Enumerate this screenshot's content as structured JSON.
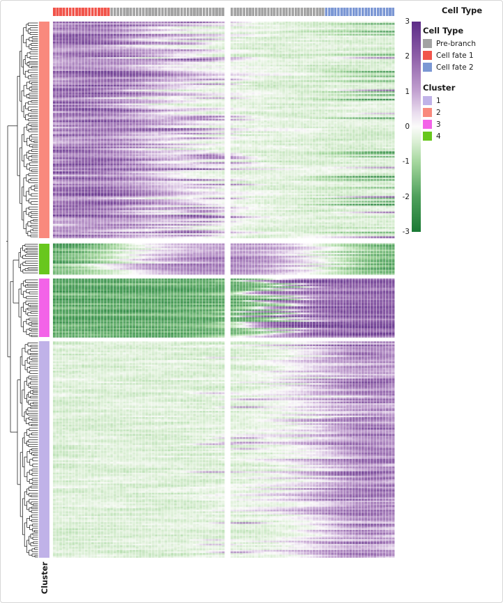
{
  "window": {
    "bg": "#ffffff",
    "border": "#d6d6d6"
  },
  "top_annotation": {
    "title": "Cell Type",
    "left_segments": [
      {
        "type": "Cell fate 1",
        "color": "#f1544b",
        "fraction": 0.33
      },
      {
        "type": "Pre-branch",
        "color": "#a3a3a3",
        "fraction": 0.67
      }
    ],
    "right_segments": [
      {
        "type": "Pre-branch",
        "color": "#a3a3a3",
        "fraction": 0.57
      },
      {
        "type": "Cell fate 2",
        "color": "#7b97d4",
        "fraction": 0.43
      }
    ]
  },
  "colorbar": {
    "ticks": [
      "3",
      "2",
      "1",
      "0",
      "-1",
      "-2",
      "-3"
    ],
    "domain": [
      -3,
      3
    ]
  },
  "legends": {
    "cell_type": {
      "title": "Cell Type",
      "items": [
        {
          "label": "Pre-branch",
          "color": "#a3a3a3"
        },
        {
          "label": "Cell fate 1",
          "color": "#f1544b"
        },
        {
          "label": "Cell fate 2",
          "color": "#7b97d4"
        }
      ]
    },
    "cluster": {
      "title": "Cluster",
      "items": [
        {
          "label": "1",
          "color": "#c0b2e8"
        },
        {
          "label": "2",
          "color": "#f9897d"
        },
        {
          "label": "3",
          "color": "#f363e8"
        },
        {
          "label": "4",
          "color": "#68c71e"
        }
      ]
    }
  },
  "row_annotation_title": "Cluster",
  "chart_data": {
    "type": "heatmap",
    "description": "Branched pseudotime expression heatmap (two branches around a branch point). Left panel runs from the Cell fate 1 terminus (left edge) to the branch point (centre gap); right panel runs from the branch point to the Cell fate 2 terminus (right edge). Rows are genes, hierarchically clustered (dendrogram at left) into 4 clusters.",
    "value_label": "scaled expression (z-score)",
    "colormap": {
      "domain": [
        -3,
        3
      ],
      "stops": [
        [
          -3,
          "#1b7a35"
        ],
        [
          -2,
          "#4ea05b"
        ],
        [
          -1,
          "#a5d79e"
        ],
        [
          -0.4,
          "#ddf0d7"
        ],
        [
          0,
          "#fbfbfa"
        ],
        [
          0.4,
          "#e9dcee"
        ],
        [
          1,
          "#c3a2d1"
        ],
        [
          2,
          "#8e5fa8"
        ],
        [
          3,
          "#5c2b87"
        ]
      ]
    },
    "panels": [
      {
        "name": "left",
        "x_direction": "Cell fate 1 terminus to branch point",
        "ncols": 54
      },
      {
        "name": "right",
        "x_direction": "branch point to Cell fate 2 terminus",
        "ncols": 54
      }
    ],
    "row_blocks": [
      {
        "cluster": "2",
        "color": "#f9897d",
        "rows": 140,
        "pattern": "high_fate1",
        "summary": "High (purple) early along Cell fate 1, near/below baseline elsewhere; some rows repressed (dark green) at the Cell fate 2 terminus, a few induced there"
      },
      {
        "cluster": "4",
        "color": "#68c71e",
        "rows": 20,
        "pattern": "transient",
        "summary": "Low (green) at both branch termini with a transient peak (purple) around the branch point"
      },
      {
        "cluster": "3",
        "color": "#f363e8",
        "rows": 38,
        "pattern": "switch_fate2",
        "summary": "Strongly low (dark green) along Cell fate 1 rising monotonically to high (purple) at the Cell fate 2 terminus"
      },
      {
        "cluster": "1",
        "color": "#c0b2e8",
        "rows": 140,
        "pattern": "late_fate2",
        "summary": "Near baseline (pale green) everywhere, induced late along Cell fate 2 (purple at right edge)"
      }
    ],
    "seed": 42
  }
}
